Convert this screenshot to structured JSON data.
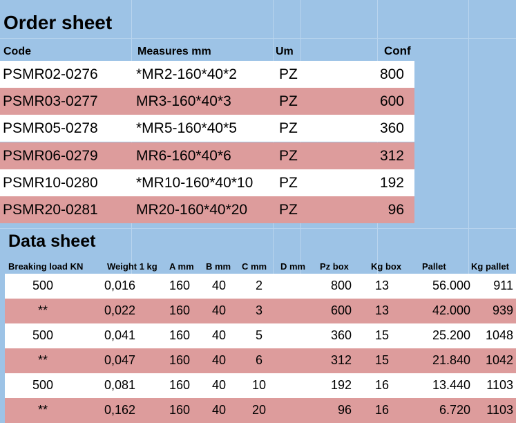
{
  "order_sheet": {
    "title": "Order sheet",
    "headers": {
      "code": "Code",
      "measures": "Measures mm",
      "um": "Um",
      "conf": "Conf"
    },
    "rows": [
      {
        "code": "PSMR02-0276",
        "measures": "*MR2-160*40*2",
        "um": "PZ",
        "conf": "800"
      },
      {
        "code": "PSMR03-0277",
        "measures": "MR3-160*40*3",
        "um": "PZ",
        "conf": "600"
      },
      {
        "code": "PSMR05-0278",
        "measures": "*MR5-160*40*5",
        "um": "PZ",
        "conf": "360"
      },
      {
        "code": "PSMR06-0279",
        "measures": "MR6-160*40*6",
        "um": "PZ",
        "conf": "312"
      },
      {
        "code": "PSMR10-0280",
        "measures": "*MR10-160*40*10",
        "um": "PZ",
        "conf": "192"
      },
      {
        "code": "PSMR20-0281",
        "measures": "MR20-160*40*20",
        "um": "PZ",
        "conf": "96"
      }
    ]
  },
  "data_sheet": {
    "title": "Data sheet",
    "headers": {
      "breaking_load": "Breaking load KN",
      "weight": "Weight 1 kg",
      "a": "A mm",
      "b": "B mm",
      "c": "C mm",
      "d": "D mm",
      "pz_box": "Pz box",
      "kg_box": "Kg box",
      "pallet": "Pallet",
      "kg_pallet": "Kg pallet"
    },
    "rows": [
      {
        "breaking_load": "500",
        "weight": "0,016",
        "a": "160",
        "b": "40",
        "c": "2",
        "pz_box": "800",
        "kg_box": "13",
        "pallet": "56.000",
        "kg_pallet": "911"
      },
      {
        "breaking_load": "**",
        "weight": "0,022",
        "a": "160",
        "b": "40",
        "c": "3",
        "pz_box": "600",
        "kg_box": "13",
        "pallet": "42.000",
        "kg_pallet": "939"
      },
      {
        "breaking_load": "500",
        "weight": "0,041",
        "a": "160",
        "b": "40",
        "c": "5",
        "pz_box": "360",
        "kg_box": "15",
        "pallet": "25.200",
        "kg_pallet": "1048"
      },
      {
        "breaking_load": "**",
        "weight": "0,047",
        "a": "160",
        "b": "40",
        "c": "6",
        "pz_box": "312",
        "kg_box": "15",
        "pallet": "21.840",
        "kg_pallet": "1042"
      },
      {
        "breaking_load": "500",
        "weight": "0,081",
        "a": "160",
        "b": "40",
        "c": "10",
        "pz_box": "192",
        "kg_box": "16",
        "pallet": "13.440",
        "kg_pallet": "1103"
      },
      {
        "breaking_load": "**",
        "weight": "0,162",
        "a": "160",
        "b": "40",
        "c": "20",
        "pz_box": "96",
        "kg_box": "16",
        "pallet": "6.720",
        "kg_pallet": "1103"
      }
    ]
  },
  "colors": {
    "background": "#9dc3e6",
    "row_white": "#ffffff",
    "row_pink": "#dd9c9c"
  }
}
